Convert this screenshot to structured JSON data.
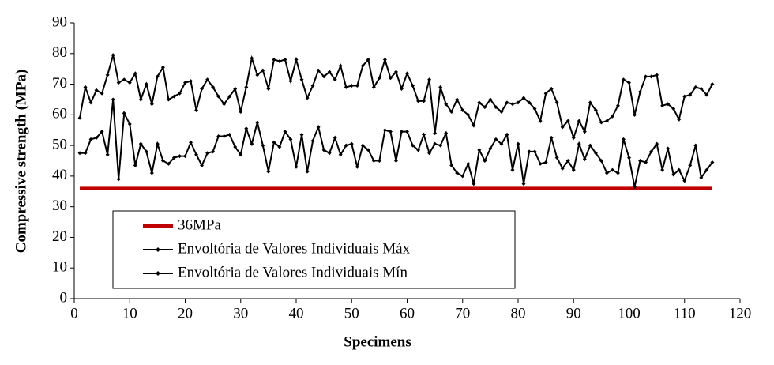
{
  "chart_data": {
    "type": "line",
    "xlabel": "Specimens",
    "ylabel": "Compressive strength (MPa)",
    "xlim": [
      0,
      120
    ],
    "xticks": [
      0,
      10,
      20,
      30,
      40,
      50,
      60,
      70,
      80,
      90,
      100,
      110,
      120
    ],
    "ylim": [
      0,
      90
    ],
    "yticks": [
      0,
      10,
      20,
      30,
      40,
      50,
      60,
      70,
      80,
      90
    ],
    "grid": false,
    "legend": "lower left",
    "x": [
      1,
      2,
      3,
      4,
      5,
      6,
      7,
      8,
      9,
      10,
      11,
      12,
      13,
      14,
      15,
      16,
      17,
      18,
      19,
      20,
      21,
      22,
      23,
      24,
      25,
      26,
      27,
      28,
      29,
      30,
      31,
      32,
      33,
      34,
      35,
      36,
      37,
      38,
      39,
      40,
      41,
      42,
      43,
      44,
      45,
      46,
      47,
      48,
      49,
      50,
      51,
      52,
      53,
      54,
      55,
      56,
      57,
      58,
      59,
      60,
      61,
      62,
      63,
      64,
      65,
      66,
      67,
      68,
      69,
      70,
      71,
      72,
      73,
      74,
      75,
      76,
      77,
      78,
      79,
      80,
      81,
      82,
      83,
      84,
      85,
      86,
      87,
      88,
      89,
      90,
      91,
      92,
      93,
      94,
      95,
      96,
      97,
      98,
      99,
      100,
      101,
      102,
      103,
      104,
      105,
      106,
      107,
      108,
      109,
      110,
      111,
      112,
      113,
      114,
      115
    ],
    "series": [
      {
        "name": "36MPa",
        "color": "#c00000",
        "x": [
          1,
          115
        ],
        "values": [
          36,
          36
        ]
      },
      {
        "name": "Envoltória de Valores Individuais Máx",
        "color": "#000000",
        "values": [
          59,
          69,
          64,
          68,
          67,
          73,
          79.5,
          70.5,
          71.5,
          70.5,
          73.5,
          65,
          70,
          63.5,
          72.5,
          75.5,
          65,
          66,
          67,
          70.5,
          71,
          61.5,
          68.5,
          71.5,
          69,
          66,
          63.5,
          66,
          68.5,
          61,
          69,
          78.5,
          73,
          74.5,
          68.5,
          78,
          77.5,
          78,
          71,
          78,
          71.5,
          65.5,
          69.5,
          74.5,
          72.5,
          74,
          71.5,
          76,
          69,
          69.5,
          69.5,
          76,
          78,
          69,
          72,
          78,
          72,
          74,
          68.5,
          73.5,
          69.5,
          64.5,
          64.5,
          71.5,
          54,
          69,
          63.5,
          61,
          65,
          61.5,
          60,
          56.5,
          64,
          62.5,
          65,
          62.5,
          61,
          64,
          63.5,
          64,
          65.5,
          64,
          62,
          58,
          67,
          68.5,
          64,
          56,
          58,
          52.5,
          58,
          54.5,
          64,
          61.5,
          57.5,
          58,
          59.5,
          63,
          71.5,
          70.5,
          60,
          67.5,
          72.5,
          72.5,
          73,
          63,
          63.5,
          62,
          58.5,
          66,
          66.5,
          69,
          68.5,
          66.5,
          70
        ]
      },
      {
        "name": "Envoltória de Valores Individuais Mín",
        "color": "#000000",
        "values": [
          47.5,
          47.5,
          52,
          52.5,
          54.5,
          47,
          65,
          39,
          60.5,
          57,
          43.5,
          50.5,
          48,
          41,
          50.5,
          45,
          44,
          46,
          46.5,
          46.5,
          51,
          47,
          43.5,
          47.5,
          48,
          53,
          53,
          53.5,
          49.5,
          47,
          55.5,
          50.5,
          57.5,
          50,
          41.5,
          51,
          49.5,
          54.5,
          52,
          43,
          53.5,
          41.5,
          51.5,
          56,
          48.5,
          47.5,
          52.5,
          47,
          50,
          50.5,
          43,
          50,
          48.5,
          45,
          45,
          55,
          54.5,
          45,
          54.5,
          54.5,
          50,
          48.5,
          53.5,
          47.5,
          50.5,
          50,
          54,
          43.5,
          41,
          40,
          44,
          37.5,
          48.5,
          45,
          49,
          52,
          50.5,
          53.5,
          42,
          50.5,
          37.5,
          48,
          48,
          44,
          44.5,
          52.5,
          46,
          42.5,
          45,
          42,
          50.5,
          45.5,
          50,
          47.5,
          45,
          41,
          42,
          41,
          52,
          46,
          36.5,
          45,
          44.5,
          48,
          50.5,
          42,
          49,
          40.5,
          42,
          38.5,
          43.5,
          50,
          39.5,
          42,
          44.5
        ]
      }
    ]
  }
}
